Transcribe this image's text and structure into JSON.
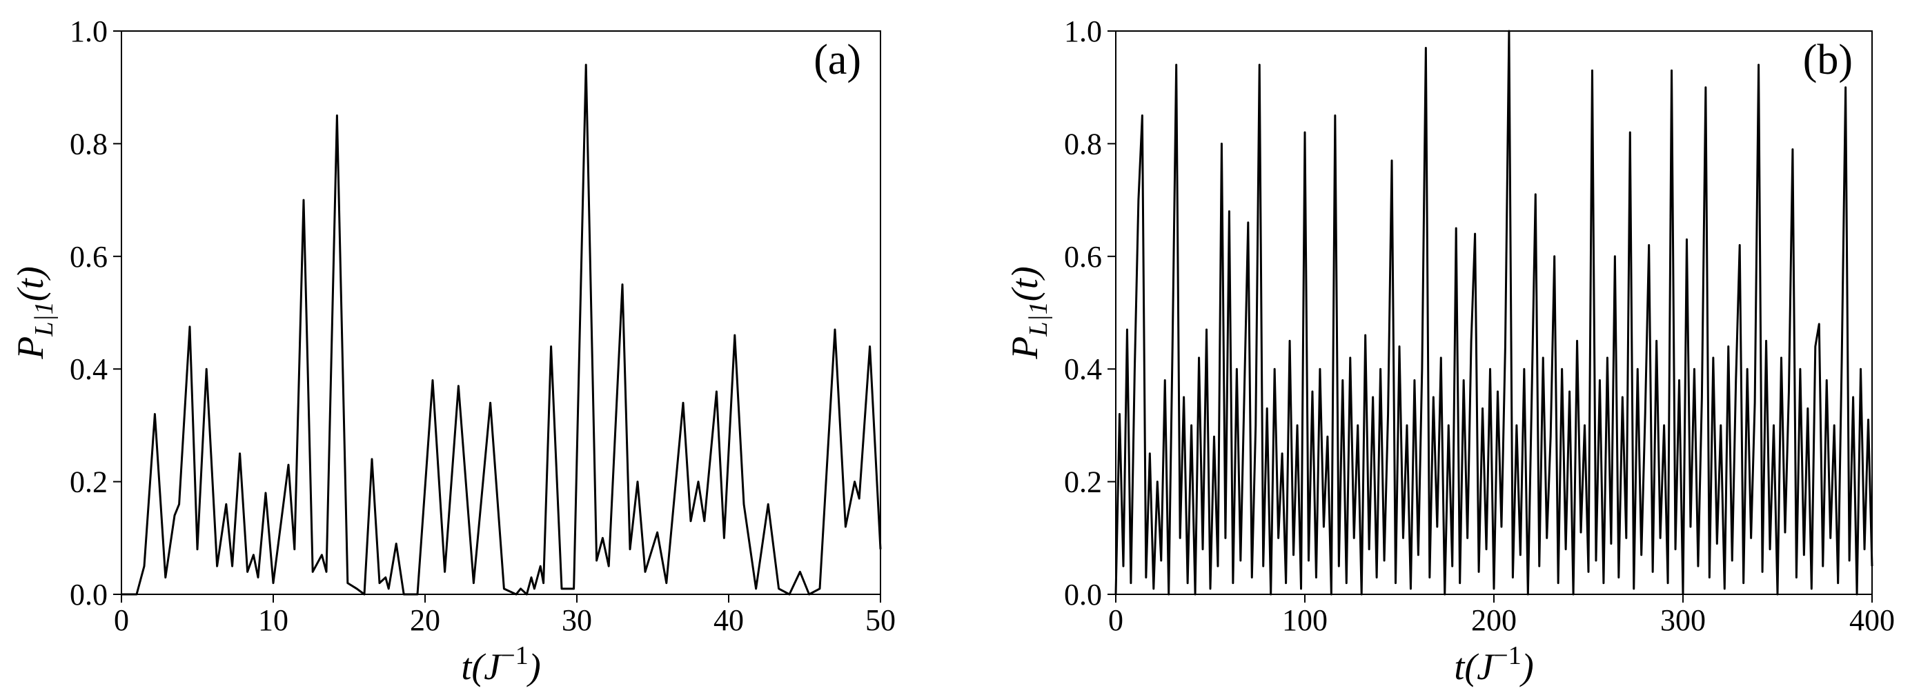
{
  "chart_data": [
    {
      "type": "line",
      "annotation": "(a)",
      "xlabel": [
        "t(J",
        "−1",
        ")"
      ],
      "ylabel": [
        "P",
        "L|1",
        "(t)"
      ],
      "xlim": [
        0,
        50
      ],
      "ylim": [
        0,
        1
      ],
      "xticks": [
        0,
        10,
        20,
        30,
        40,
        50
      ],
      "yticks": [
        {
          "value": 0,
          "label": "0.0"
        },
        {
          "value": 0.2,
          "label": "0.2"
        },
        {
          "value": 0.4,
          "label": "0.4"
        },
        {
          "value": 0.6,
          "label": "0.6"
        },
        {
          "value": 0.8,
          "label": "0.8"
        },
        {
          "value": 1,
          "label": "1.0"
        }
      ],
      "x": [
        0,
        1,
        1.5,
        2.2,
        2.9,
        3.5,
        3.8,
        4.5,
        5.0,
        5.6,
        6.3,
        6.9,
        7.3,
        7.8,
        8.3,
        8.7,
        9.0,
        9.5,
        10.0,
        11.0,
        11.4,
        12.0,
        12.6,
        13.2,
        13.5,
        14.2,
        14.9,
        15.5,
        16.0,
        16.5,
        17.0,
        17.4,
        17.6,
        18.1,
        18.6,
        19.5,
        20.5,
        21.3,
        22.2,
        23.2,
        24.3,
        25.2,
        26,
        26.3,
        26.7,
        27,
        27.2,
        27.6,
        27.8,
        28.3,
        29,
        29.8,
        30.6,
        31.3,
        31.7,
        32.1,
        33,
        33.5,
        34,
        34.5,
        35.3,
        35.9,
        37,
        37.5,
        38,
        38.4,
        39.2,
        39.7,
        40.4,
        41,
        41.8,
        42.6,
        43.3,
        44.0,
        44.7,
        45.3,
        46,
        47,
        47.7,
        48.3,
        48.6,
        49.3,
        50
      ],
      "series": [
        {
          "color": "#000000",
          "values": [
            0,
            0,
            0.05,
            0.32,
            0.03,
            0.14,
            0.16,
            0.475,
            0.08,
            0.4,
            0.05,
            0.16,
            0.05,
            0.25,
            0.04,
            0.07,
            0.03,
            0.18,
            0.02,
            0.23,
            0.08,
            0.7,
            0.04,
            0.07,
            0.04,
            0.85,
            0.02,
            0.01,
            0,
            0.24,
            0.02,
            0.03,
            0.01,
            0.09,
            0,
            0,
            0.38,
            0.04,
            0.37,
            0.02,
            0.34,
            0.01,
            0,
            0.01,
            0,
            0.03,
            0.01,
            0.05,
            0.02,
            0.44,
            0.01,
            0.01,
            0.94,
            0.06,
            0.1,
            0.05,
            0.55,
            0.08,
            0.2,
            0.04,
            0.11,
            0.02,
            0.34,
            0.13,
            0.2,
            0.13,
            0.36,
            0.1,
            0.46,
            0.16,
            0.01,
            0.16,
            0.01,
            0,
            0.04,
            0,
            0.01,
            0.47,
            0.12,
            0.2,
            0.17,
            0.44,
            0.08
          ]
        }
      ]
    },
    {
      "type": "line",
      "annotation": "(b)",
      "xlabel": [
        "t(J",
        "−1",
        ")"
      ],
      "ylabel": [
        "P",
        "L|1",
        "(t)"
      ],
      "xlim": [
        0,
        400
      ],
      "ylim": [
        0,
        1
      ],
      "xticks": [
        0,
        100,
        200,
        300,
        400
      ],
      "yticks": [
        {
          "value": 0,
          "label": "0.0"
        },
        {
          "value": 0.2,
          "label": "0.2"
        },
        {
          "value": 0.4,
          "label": "0.4"
        },
        {
          "value": 0.6,
          "label": "0.6"
        },
        {
          "value": 0.8,
          "label": "0.8"
        },
        {
          "value": 1,
          "label": "1.0"
        }
      ],
      "x": [
        0,
        2,
        4,
        6,
        8,
        10,
        12,
        14,
        16,
        18,
        20,
        22,
        24,
        26,
        28,
        30,
        32,
        34,
        36,
        38,
        40,
        42,
        44,
        46,
        48,
        50,
        52,
        54,
        56,
        58,
        60,
        62,
        64,
        66,
        68,
        70,
        72,
        74,
        76,
        78,
        80,
        82,
        84,
        86,
        88,
        90,
        92,
        94,
        96,
        98,
        100,
        102,
        104,
        106,
        108,
        110,
        112,
        114,
        116,
        118,
        120,
        122,
        124,
        126,
        128,
        130,
        132,
        134,
        136,
        138,
        140,
        142,
        144,
        146,
        148,
        150,
        152,
        154,
        156,
        158,
        160,
        162,
        164,
        166,
        168,
        170,
        172,
        174,
        176,
        178,
        180,
        182,
        184,
        186,
        188,
        190,
        192,
        194,
        196,
        198,
        200,
        202,
        204,
        206,
        208,
        210,
        212,
        214,
        216,
        218,
        220,
        222,
        224,
        226,
        228,
        230,
        232,
        234,
        236,
        238,
        240,
        242,
        244,
        246,
        248,
        250,
        252,
        254,
        256,
        258,
        260,
        262,
        264,
        266,
        268,
        270,
        272,
        274,
        276,
        278,
        280,
        282,
        284,
        286,
        288,
        290,
        292,
        294,
        296,
        298,
        300,
        302,
        304,
        306,
        308,
        310,
        312,
        314,
        316,
        318,
        320,
        322,
        324,
        326,
        328,
        330,
        332,
        334,
        336,
        338,
        340,
        342,
        344,
        346,
        348,
        350,
        352,
        354,
        356,
        358,
        360,
        362,
        364,
        366,
        368,
        370,
        372,
        374,
        376,
        378,
        380,
        382,
        384,
        386,
        388,
        390,
        392,
        394,
        396,
        398,
        400
      ],
      "series": [
        {
          "color": "#000000",
          "values": [
            0,
            0.32,
            0.05,
            0.47,
            0.02,
            0.4,
            0.7,
            0.85,
            0.03,
            0.25,
            0.01,
            0.2,
            0.06,
            0.38,
            0,
            0.44,
            0.94,
            0.1,
            0.35,
            0.02,
            0.3,
            0,
            0.42,
            0.08,
            0.47,
            0.01,
            0.28,
            0.05,
            0.8,
            0.1,
            0.68,
            0.02,
            0.4,
            0.06,
            0.36,
            0.66,
            0.03,
            0.3,
            0.94,
            0.05,
            0.33,
            0,
            0.4,
            0.1,
            0.25,
            0.02,
            0.45,
            0.07,
            0.3,
            0.01,
            0.82,
            0.06,
            0.36,
            0.03,
            0.4,
            0.12,
            0.28,
            0,
            0.85,
            0.05,
            0.38,
            0.02,
            0.42,
            0.1,
            0.3,
            0,
            0.46,
            0.08,
            0.35,
            0.03,
            0.4,
            0.06,
            0.32,
            0.77,
            0.02,
            0.44,
            0.1,
            0.3,
            0.01,
            0.38,
            0.07,
            0.4,
            0.97,
            0.03,
            0.35,
            0.12,
            0.42,
            0,
            0.3,
            0.05,
            0.65,
            0.02,
            0.38,
            0.1,
            0.45,
            0.64,
            0.04,
            0.33,
            0.08,
            0.4,
            0.01,
            0.36,
            0.12,
            0.44,
            1.0,
            0.03,
            0.3,
            0.07,
            0.4,
            0,
            0.35,
            0.71,
            0.05,
            0.42,
            0.1,
            0.28,
            0.6,
            0.02,
            0.4,
            0.08,
            0.36,
            0,
            0.45,
            0.11,
            0.3,
            0.04,
            0.93,
            0.06,
            0.38,
            0.02,
            0.42,
            0.09,
            0.6,
            0.03,
            0.35,
            0.1,
            0.82,
            0.01,
            0.4,
            0.07,
            0.32,
            0.62,
            0.04,
            0.45,
            0.1,
            0.3,
            0.02,
            0.93,
            0.08,
            0.38,
            0,
            0.63,
            0.12,
            0.4,
            0.05,
            0.35,
            0.9,
            0.03,
            0.42,
            0.09,
            0.3,
            0.01,
            0.44,
            0.06,
            0.38,
            0.62,
            0.02,
            0.4,
            0.1,
            0.34,
            0.94,
            0.04,
            0.45,
            0.08,
            0.3,
            0,
            0.42,
            0.11,
            0.36,
            0.79,
            0.03,
            0.4,
            0.07,
            0.33,
            0.01,
            0.44,
            0.48,
            0.05,
            0.38,
            0.1,
            0.3,
            0.02,
            0.42,
            0.9,
            0.06,
            0.35,
            0,
            0.4,
            0.08,
            0.31,
            0.05
          ]
        }
      ]
    }
  ]
}
